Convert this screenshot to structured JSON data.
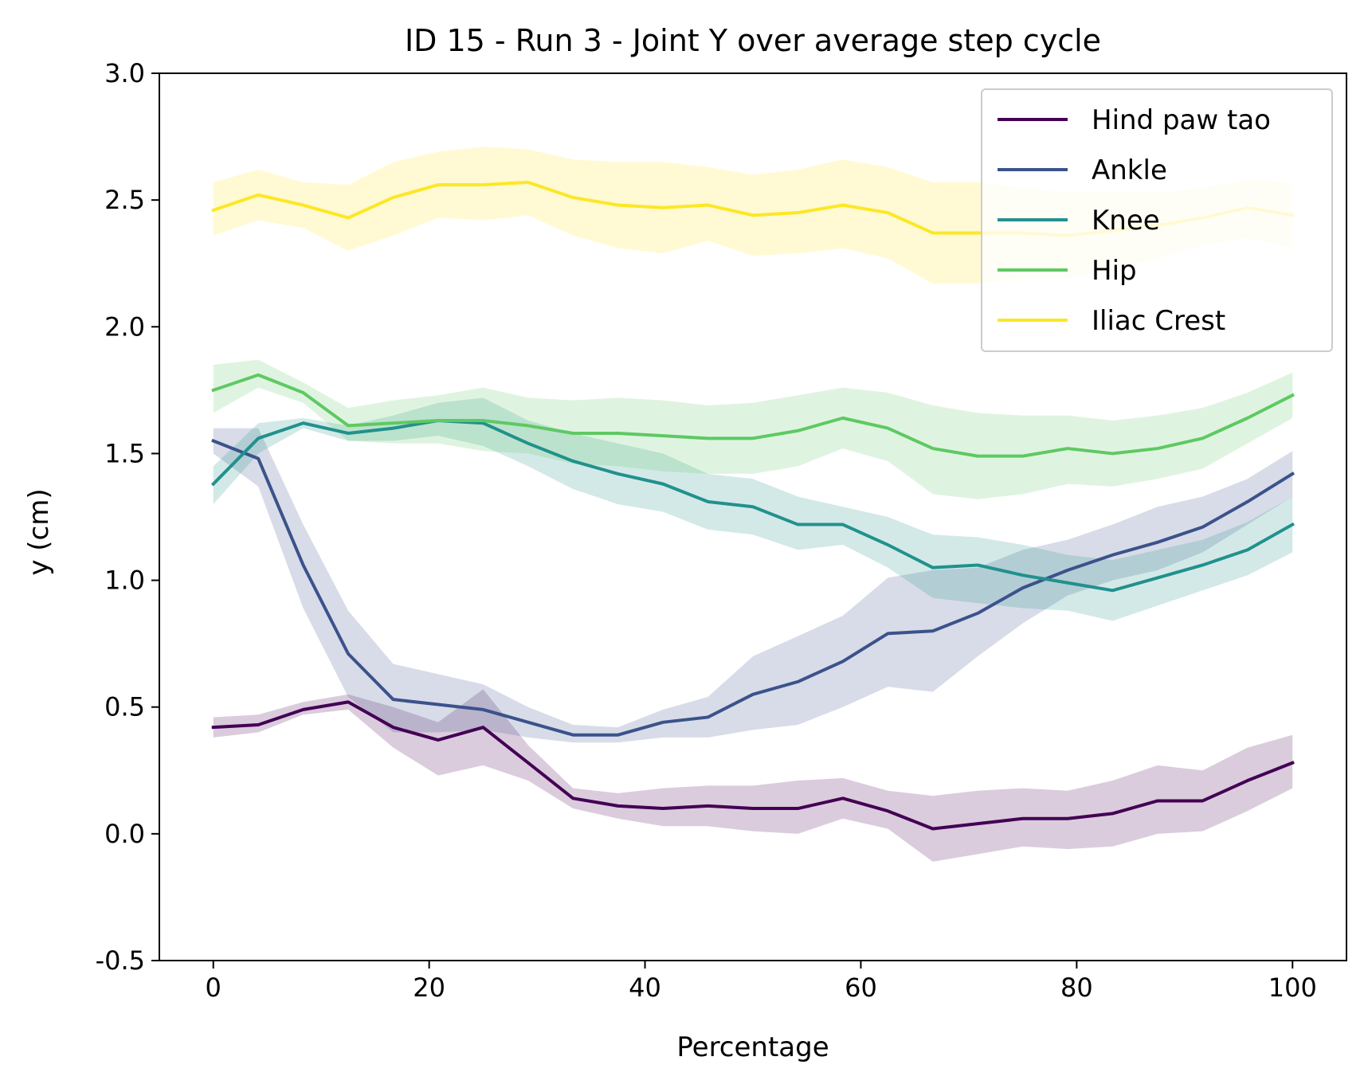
{
  "chart_data": {
    "type": "line",
    "title": "ID 15 - Run 3 - Joint Y over average step cycle",
    "xlabel": "Percentage",
    "ylabel": "y (cm)",
    "xlim": [
      -5,
      105
    ],
    "ylim": [
      -0.5,
      3.0
    ],
    "xticks": [
      0,
      20,
      40,
      60,
      80,
      100
    ],
    "xtick_labels": [
      "0",
      "20",
      "40",
      "60",
      "80",
      "100"
    ],
    "yticks": [
      -0.5,
      0.0,
      0.5,
      1.0,
      1.5,
      2.0,
      2.5,
      3.0
    ],
    "ytick_labels": [
      "-0.5",
      "0.0",
      "0.5",
      "1.0",
      "1.5",
      "2.0",
      "2.5",
      "3.0"
    ],
    "grid": false,
    "legend_position": "upper right",
    "x": [
      0,
      4.17,
      8.33,
      12.5,
      16.67,
      20.83,
      25,
      29.17,
      33.33,
      37.5,
      41.67,
      45.83,
      50,
      54.17,
      58.33,
      62.5,
      66.67,
      70.83,
      75,
      79.17,
      83.33,
      87.5,
      91.67,
      95.83,
      100
    ],
    "series": [
      {
        "name": "Hind paw tao",
        "color": "#440154",
        "values": [
          0.42,
          0.43,
          0.49,
          0.52,
          0.42,
          0.37,
          0.42,
          0.28,
          0.14,
          0.11,
          0.1,
          0.11,
          0.1,
          0.1,
          0.14,
          0.09,
          0.02,
          0.04,
          0.06,
          0.06,
          0.08,
          0.13,
          0.13,
          0.21,
          0.28
        ],
        "lower": [
          0.38,
          0.4,
          0.47,
          0.49,
          0.34,
          0.23,
          0.27,
          0.21,
          0.1,
          0.06,
          0.03,
          0.03,
          0.01,
          0.0,
          0.06,
          0.02,
          -0.11,
          -0.08,
          -0.05,
          -0.06,
          -0.05,
          0.0,
          0.01,
          0.09,
          0.18
        ],
        "upper": [
          0.46,
          0.47,
          0.52,
          0.55,
          0.5,
          0.44,
          0.57,
          0.35,
          0.18,
          0.16,
          0.18,
          0.19,
          0.19,
          0.21,
          0.22,
          0.17,
          0.15,
          0.17,
          0.18,
          0.17,
          0.21,
          0.27,
          0.25,
          0.34,
          0.39
        ]
      },
      {
        "name": "Ankle",
        "color": "#3b528b",
        "values": [
          1.55,
          1.48,
          1.06,
          0.71,
          0.53,
          0.51,
          0.49,
          0.44,
          0.39,
          0.39,
          0.44,
          0.46,
          0.55,
          0.6,
          0.68,
          0.79,
          0.8,
          0.87,
          0.97,
          1.04,
          1.1,
          1.15,
          1.21,
          1.31,
          1.42
        ],
        "lower": [
          1.5,
          1.37,
          0.89,
          0.54,
          0.4,
          0.4,
          0.41,
          0.38,
          0.36,
          0.36,
          0.38,
          0.38,
          0.41,
          0.43,
          0.5,
          0.58,
          0.56,
          0.7,
          0.83,
          0.94,
          1.0,
          1.04,
          1.11,
          1.22,
          1.33
        ],
        "upper": [
          1.6,
          1.6,
          1.22,
          0.88,
          0.67,
          0.63,
          0.59,
          0.5,
          0.43,
          0.42,
          0.49,
          0.54,
          0.7,
          0.78,
          0.86,
          1.01,
          1.04,
          1.05,
          1.12,
          1.16,
          1.22,
          1.29,
          1.33,
          1.4,
          1.51
        ]
      },
      {
        "name": "Knee",
        "color": "#21918c",
        "values": [
          1.38,
          1.56,
          1.62,
          1.58,
          1.6,
          1.63,
          1.62,
          1.54,
          1.47,
          1.42,
          1.38,
          1.31,
          1.29,
          1.22,
          1.22,
          1.14,
          1.05,
          1.06,
          1.02,
          0.99,
          0.96,
          1.01,
          1.06,
          1.12,
          1.22
        ],
        "lower": [
          1.3,
          1.5,
          1.6,
          1.55,
          1.55,
          1.57,
          1.53,
          1.45,
          1.36,
          1.3,
          1.27,
          1.2,
          1.18,
          1.12,
          1.14,
          1.05,
          0.93,
          0.91,
          0.89,
          0.88,
          0.84,
          0.9,
          0.96,
          1.02,
          1.11
        ],
        "upper": [
          1.45,
          1.62,
          1.64,
          1.61,
          1.65,
          1.7,
          1.72,
          1.63,
          1.58,
          1.54,
          1.5,
          1.42,
          1.4,
          1.33,
          1.29,
          1.25,
          1.18,
          1.17,
          1.14,
          1.1,
          1.08,
          1.12,
          1.16,
          1.23,
          1.33
        ]
      },
      {
        "name": "Hip",
        "color": "#5ec962",
        "values": [
          1.75,
          1.81,
          1.74,
          1.61,
          1.62,
          1.63,
          1.63,
          1.61,
          1.58,
          1.58,
          1.57,
          1.56,
          1.56,
          1.59,
          1.64,
          1.6,
          1.52,
          1.49,
          1.49,
          1.52,
          1.5,
          1.52,
          1.56,
          1.64,
          1.73
        ],
        "lower": [
          1.66,
          1.76,
          1.7,
          1.55,
          1.54,
          1.54,
          1.51,
          1.5,
          1.46,
          1.45,
          1.43,
          1.42,
          1.42,
          1.45,
          1.52,
          1.47,
          1.34,
          1.32,
          1.34,
          1.38,
          1.37,
          1.4,
          1.44,
          1.54,
          1.64
        ],
        "upper": [
          1.85,
          1.87,
          1.78,
          1.68,
          1.71,
          1.73,
          1.76,
          1.72,
          1.71,
          1.72,
          1.71,
          1.69,
          1.7,
          1.73,
          1.76,
          1.74,
          1.69,
          1.66,
          1.65,
          1.65,
          1.63,
          1.65,
          1.68,
          1.74,
          1.82
        ]
      },
      {
        "name": "Iliac Crest",
        "color": "#fde725",
        "values": [
          2.46,
          2.52,
          2.48,
          2.43,
          2.51,
          2.56,
          2.56,
          2.57,
          2.51,
          2.48,
          2.47,
          2.48,
          2.44,
          2.45,
          2.48,
          2.45,
          2.37,
          2.37,
          2.37,
          2.36,
          2.38,
          2.4,
          2.43,
          2.47,
          2.44
        ],
        "lower": [
          2.36,
          2.42,
          2.39,
          2.3,
          2.36,
          2.43,
          2.42,
          2.44,
          2.36,
          2.31,
          2.29,
          2.34,
          2.28,
          2.29,
          2.31,
          2.27,
          2.17,
          2.17,
          2.19,
          2.19,
          2.23,
          2.27,
          2.32,
          2.35,
          2.31
        ],
        "upper": [
          2.57,
          2.62,
          2.57,
          2.56,
          2.65,
          2.69,
          2.71,
          2.7,
          2.66,
          2.65,
          2.65,
          2.63,
          2.6,
          2.62,
          2.66,
          2.63,
          2.57,
          2.57,
          2.55,
          2.53,
          2.53,
          2.53,
          2.55,
          2.58,
          2.57
        ]
      }
    ]
  }
}
